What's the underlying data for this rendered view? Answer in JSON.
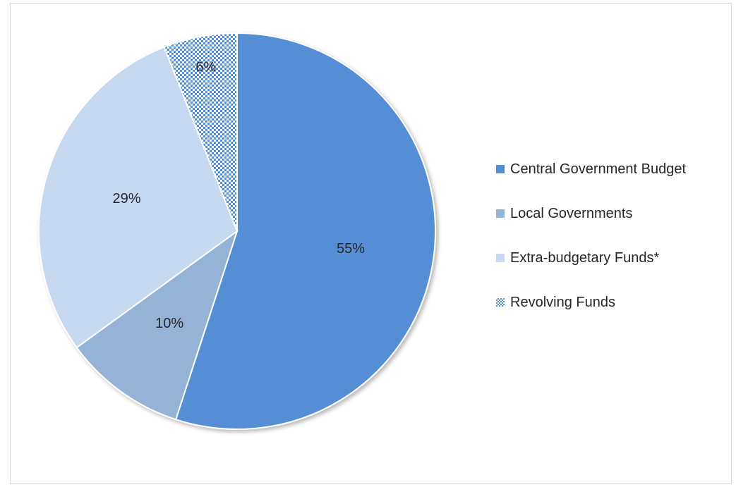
{
  "chart_data": {
    "type": "pie",
    "title": "",
    "slices": [
      {
        "label": "Central Government Budget",
        "value": 55,
        "display": "55%",
        "color": "#558ed5",
        "pattern": "solid"
      },
      {
        "label": "Local Governments",
        "value": 10,
        "display": "10%",
        "color": "#95b3d7",
        "pattern": "solid"
      },
      {
        "label": "Extra-budgetary Funds*",
        "value": 29,
        "display": "29%",
        "color": "#c6d9f1",
        "pattern": "solid"
      },
      {
        "label": "Revolving Funds",
        "value": 6,
        "display": "6%",
        "color": "#558ed5",
        "pattern": "dotted-grid"
      }
    ],
    "legend_position": "right",
    "start_angle": "12 o'clock",
    "direction": "clockwise"
  }
}
